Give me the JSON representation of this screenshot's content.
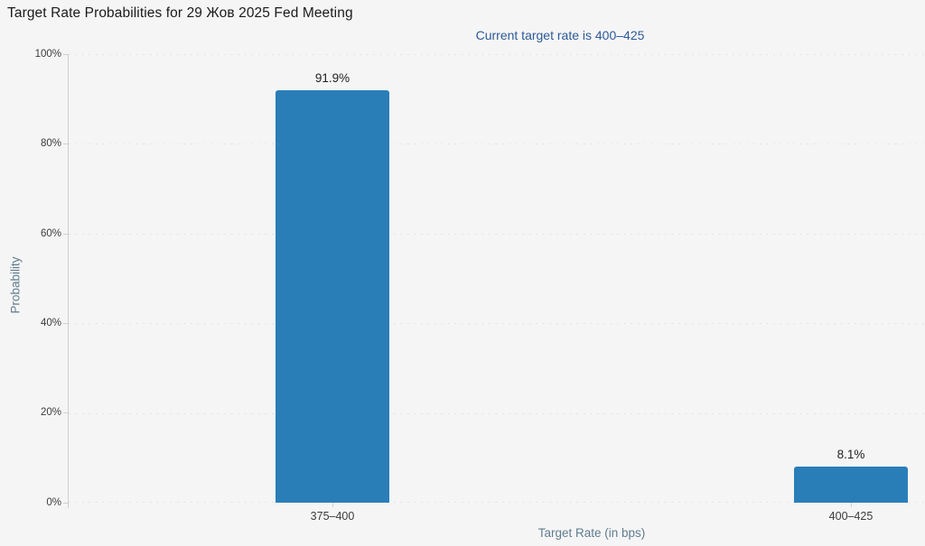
{
  "page": {
    "title": "Target Rate Probabilities for 29 Жов 2025 Fed Meeting",
    "subtitle": "Current target rate is 400–425"
  },
  "chart_data": {
    "type": "bar",
    "title": "Target Rate Probabilities for 29 Жов 2025 Fed Meeting",
    "subtitle": "Current target rate is 400–425",
    "categories": [
      "375–400",
      "400–425"
    ],
    "values": [
      91.9,
      8.1
    ],
    "value_labels": [
      "91.9%",
      "8.1%"
    ],
    "xlabel": "Target Rate (in bps)",
    "ylabel": "Probability",
    "ylim": [
      0,
      100
    ],
    "ytick_step": 20,
    "yticks": [
      "0%",
      "20%",
      "40%",
      "60%",
      "80%",
      "100%"
    ],
    "grid": "horizontal-dotted",
    "legend": "none"
  },
  "colors": {
    "background": "#f5f5f6",
    "bar": "#2a7eb8",
    "title_text": "#1b1b1b",
    "subtitle_text": "#2d5a96",
    "axis_title_text": "#5f7d8e",
    "tick_label_text": "#3c3c3c",
    "gridline": "#dedee0",
    "axis_line": "#cfcfd1"
  }
}
